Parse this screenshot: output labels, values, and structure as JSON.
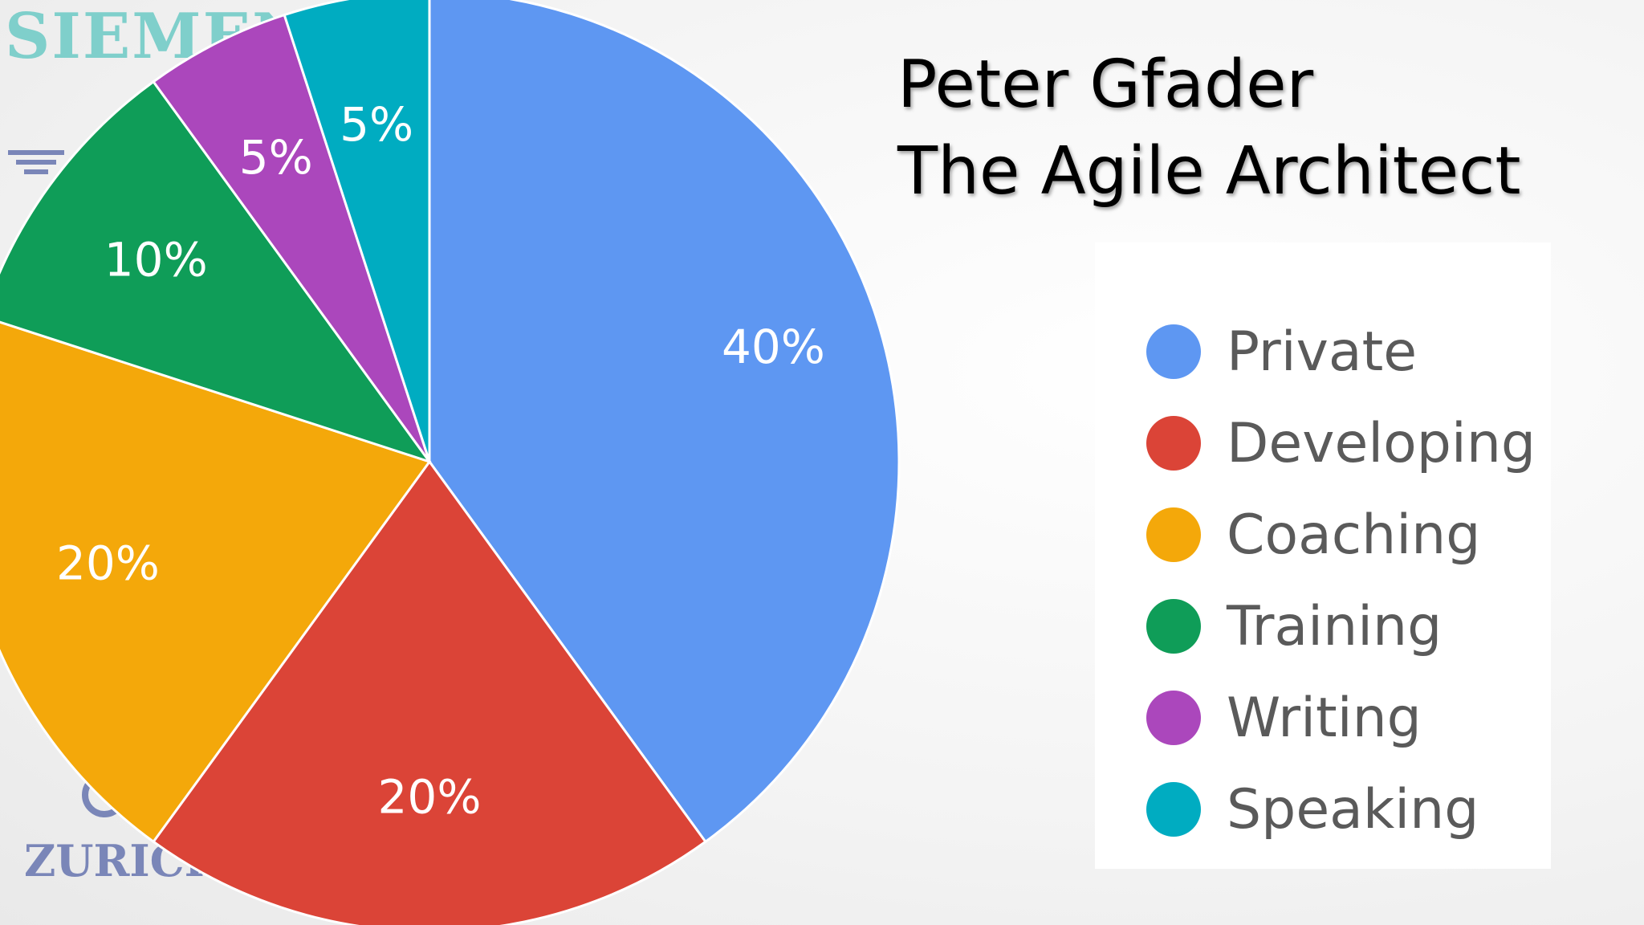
{
  "title": {
    "line1": "Peter Gfader",
    "line2": "The Agile Architect"
  },
  "logos": {
    "top": "SIEMENS",
    "bottom": "ZURICH"
  },
  "chart_data": {
    "type": "pie",
    "categories": [
      "Private",
      "Developing",
      "Coaching",
      "Training",
      "Writing",
      "Speaking"
    ],
    "values": [
      40,
      20,
      20,
      10,
      5,
      5
    ],
    "labels": [
      "40%",
      "20%",
      "20%",
      "10%",
      "5%",
      "5%"
    ],
    "colors": [
      "#5e97f2",
      "#db4437",
      "#f4a80a",
      "#0f9d58",
      "#ab47bc",
      "#00acc1"
    ],
    "legend_position": "right"
  }
}
